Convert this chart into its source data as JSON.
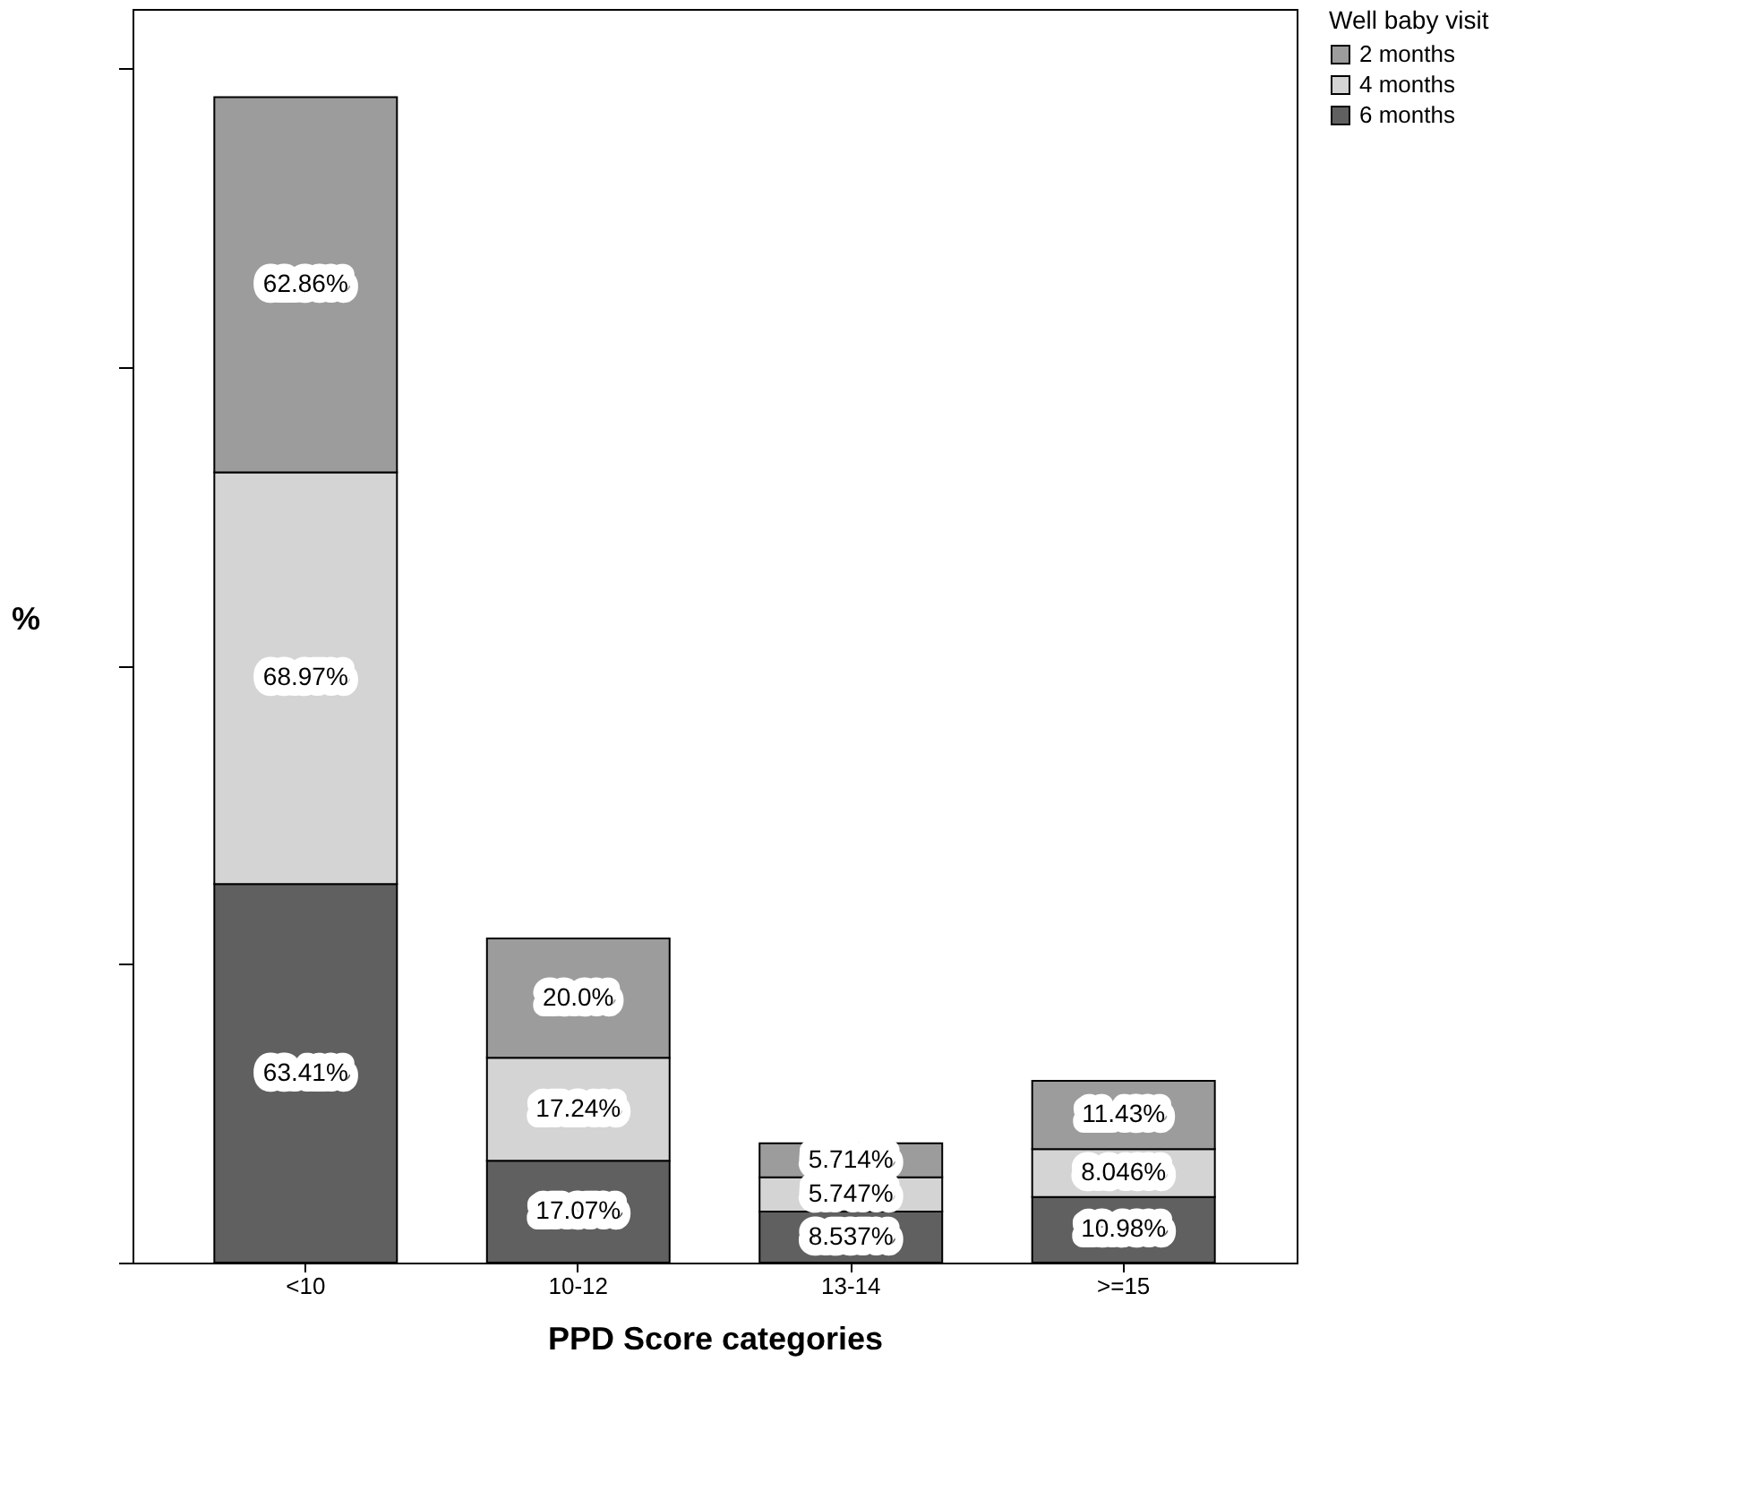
{
  "chart_data": {
    "type": "bar",
    "stacked": true,
    "xlabel": "PPD Score categories",
    "ylabel": "%",
    "legend_title": "Well baby visit",
    "legend": "top right",
    "grid": false,
    "categories": [
      "<10",
      "10-12",
      "13-14",
      ">=15"
    ],
    "ylim": [
      0,
      210
    ],
    "yticks": [
      {
        "value": 0,
        "label": null
      },
      {
        "value": 50,
        "label": null
      },
      {
        "value": 100,
        "label": null
      },
      {
        "value": 150,
        "label": null
      },
      {
        "value": 200,
        "label": null
      }
    ],
    "series": [
      {
        "name": "6 months",
        "color": "#606060",
        "values": [
          63.41,
          17.07,
          8.537,
          10.98
        ],
        "value_labels": [
          "63.41%",
          "17.07%",
          "8.537%",
          "10.98%"
        ]
      },
      {
        "name": "4 months",
        "color": "#d4d4d4",
        "values": [
          68.97,
          17.24,
          5.747,
          8.046
        ],
        "value_labels": [
          "68.97%",
          "17.24%",
          "5.747%",
          "8.046%"
        ]
      },
      {
        "name": "2 months",
        "color": "#9c9c9c",
        "values": [
          62.86,
          20.0,
          5.714,
          11.43
        ],
        "value_labels": [
          "62.86%",
          "20.0%",
          "5.714%",
          "11.43%"
        ]
      }
    ]
  }
}
